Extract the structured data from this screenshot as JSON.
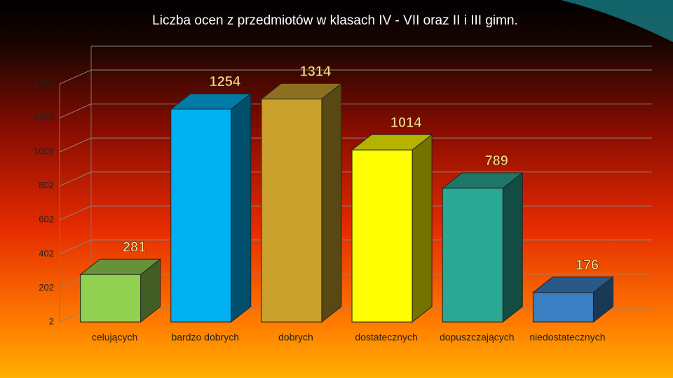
{
  "chart_data": {
    "type": "bar3d",
    "title": "Liczba ocen z przedmiotów w klasach IV - VII  oraz II i III gimn.",
    "categories": [
      "celujących",
      "bardzo dobrych",
      "dobrych",
      "dostatecznych",
      "dopuszczających",
      "niedostatecznych"
    ],
    "values": [
      281,
      1254,
      1314,
      1014,
      789,
      176
    ],
    "colors": [
      "#92d050",
      "#00b0f0",
      "#c9a02c",
      "#ffff00",
      "#2aa893",
      "#3a7fc1"
    ],
    "ylim": [
      2,
      1402
    ],
    "yticks": [
      2,
      202,
      402,
      602,
      802,
      1002,
      1202,
      1402
    ],
    "grid": true
  }
}
